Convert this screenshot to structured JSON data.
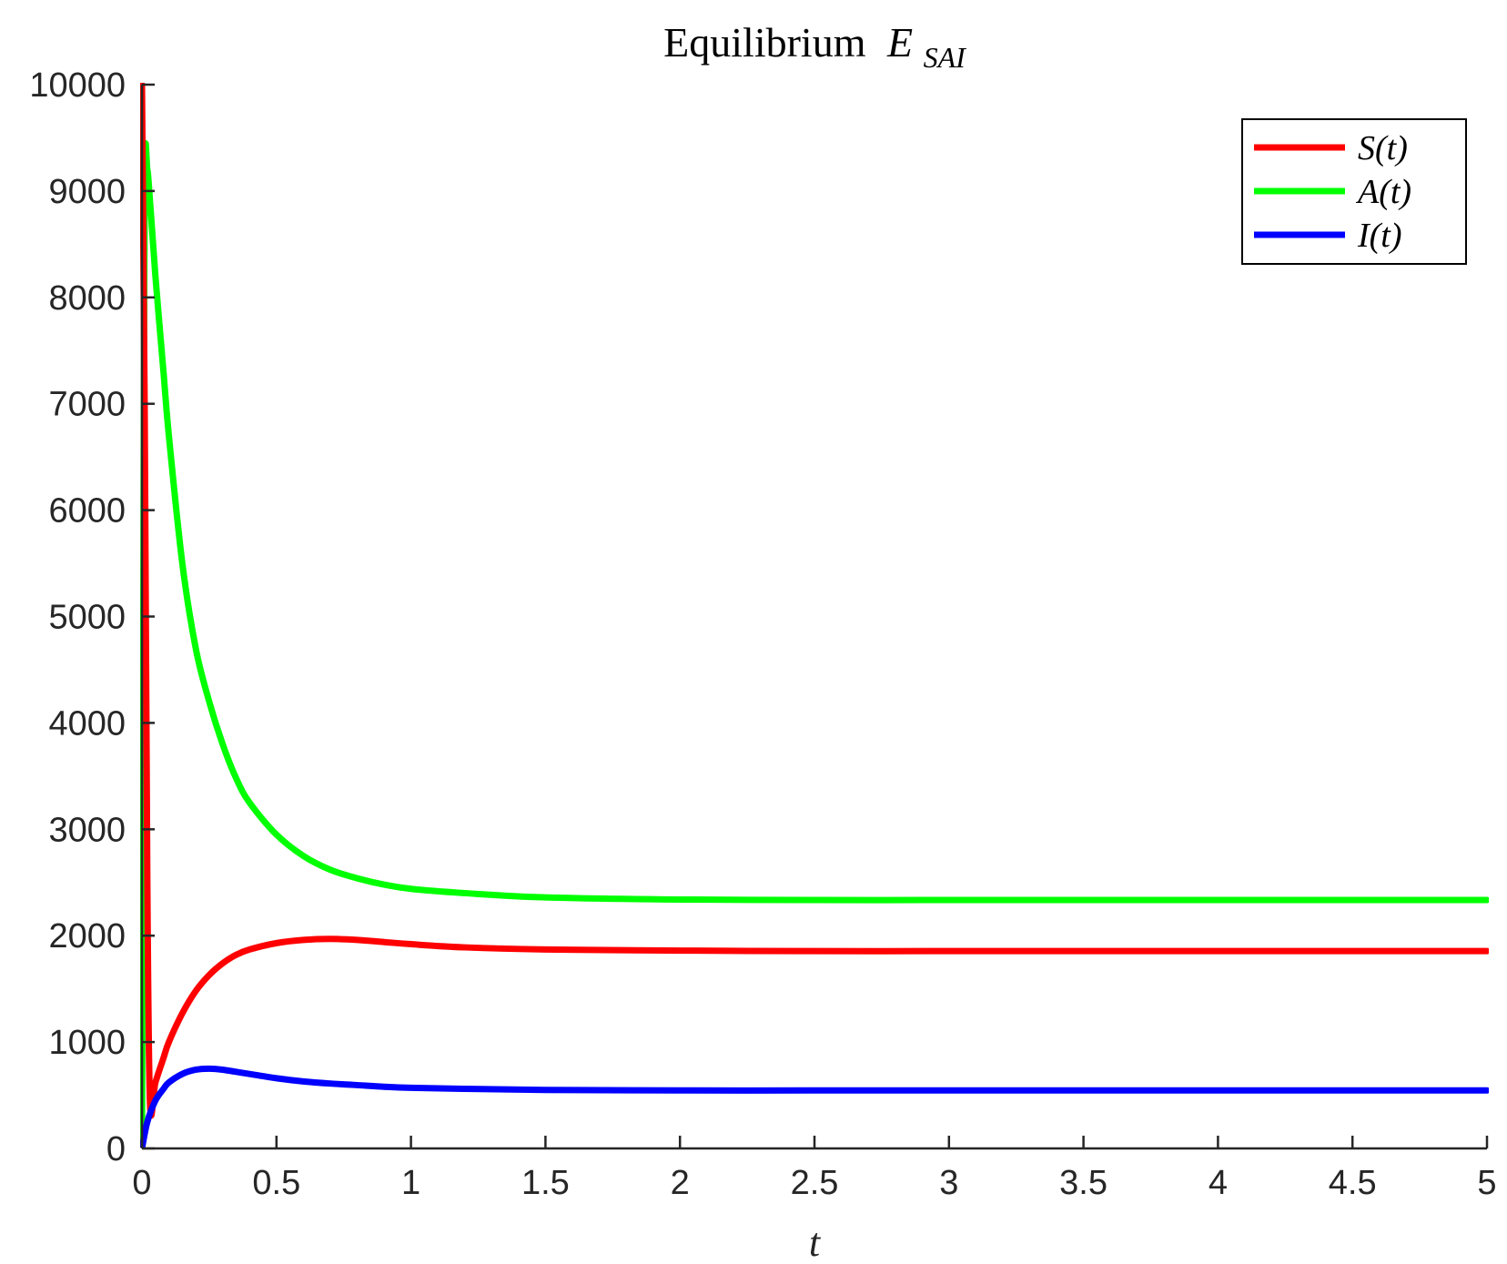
{
  "chart_data": {
    "type": "line",
    "title": {
      "main": "Equilibrium",
      "symbol": "E",
      "subscript": "SAI"
    },
    "xlabel": "t",
    "ylabel": "",
    "xlim": [
      0,
      5
    ],
    "ylim": [
      0,
      10000
    ],
    "xticks": [
      "0",
      "0.5",
      "1",
      "1.5",
      "2",
      "2.5",
      "3",
      "3.5",
      "4",
      "4.5",
      "5"
    ],
    "yticks": [
      "0",
      "1000",
      "2000",
      "3000",
      "4000",
      "5000",
      "6000",
      "7000",
      "8000",
      "9000",
      "10000"
    ],
    "grid": false,
    "legend_position": "top-right",
    "series": [
      {
        "name": "S(t)",
        "color": "#ff0000",
        "x": [
          0,
          0.01,
          0.02,
          0.03,
          0.05,
          0.08,
          0.1,
          0.15,
          0.2,
          0.25,
          0.3,
          0.35,
          0.4,
          0.5,
          0.6,
          0.7,
          0.8,
          0.9,
          1.0,
          1.2,
          1.5,
          2.0,
          2.5,
          3.0,
          3.5,
          4.0,
          4.5,
          5.0
        ],
        "y": [
          10000,
          7000,
          2500,
          420,
          620,
          850,
          1000,
          1270,
          1480,
          1630,
          1740,
          1820,
          1870,
          1930,
          1960,
          1970,
          1960,
          1940,
          1920,
          1890,
          1870,
          1860,
          1855,
          1855,
          1855,
          1855,
          1855,
          1855
        ]
      },
      {
        "name": "A(t)",
        "color": "#00ff00",
        "x": [
          0,
          0.005,
          0.01,
          0.02,
          0.03,
          0.05,
          0.08,
          0.1,
          0.15,
          0.2,
          0.25,
          0.3,
          0.35,
          0.4,
          0.5,
          0.6,
          0.7,
          0.8,
          0.9,
          1.0,
          1.2,
          1.5,
          2.0,
          2.5,
          3.0,
          3.5,
          4.0,
          4.5,
          5.0
        ],
        "y": [
          0,
          5000,
          9100,
          9200,
          8900,
          8200,
          7300,
          6700,
          5500,
          4700,
          4200,
          3800,
          3480,
          3250,
          2950,
          2750,
          2620,
          2540,
          2480,
          2440,
          2400,
          2360,
          2340,
          2335,
          2335,
          2335,
          2335,
          2335,
          2335
        ]
      },
      {
        "name": "I(t)",
        "color": "#0000ff",
        "x": [
          0,
          0.02,
          0.05,
          0.08,
          0.1,
          0.15,
          0.2,
          0.25,
          0.3,
          0.35,
          0.4,
          0.5,
          0.6,
          0.7,
          0.8,
          0.9,
          1.0,
          1.2,
          1.5,
          2.0,
          2.5,
          3.0,
          3.5,
          4.0,
          4.5,
          5.0
        ],
        "y": [
          0,
          250,
          450,
          560,
          620,
          700,
          740,
          750,
          740,
          720,
          700,
          660,
          630,
          610,
          595,
          580,
          570,
          560,
          550,
          545,
          545,
          545,
          545,
          545,
          545,
          545
        ]
      }
    ]
  }
}
